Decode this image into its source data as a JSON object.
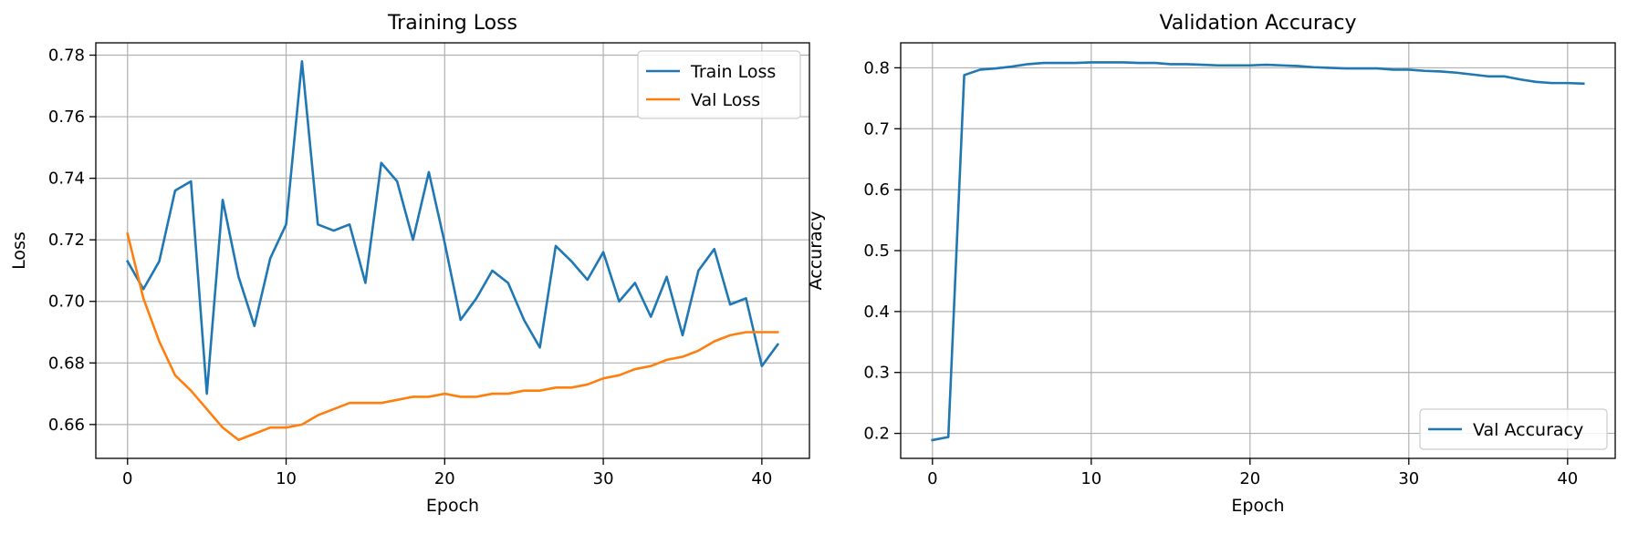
{
  "chart_data": [
    {
      "type": "line",
      "title": "Training Loss",
      "xlabel": "Epoch",
      "ylabel": "Loss",
      "xlim": [
        -2,
        43
      ],
      "ylim": [
        0.649,
        0.784
      ],
      "xticks": [
        0,
        10,
        20,
        30,
        40
      ],
      "yticks": [
        0.66,
        0.68,
        0.7,
        0.72,
        0.74,
        0.76,
        0.78
      ],
      "ytick_labels": [
        "0.66",
        "0.68",
        "0.70",
        "0.72",
        "0.74",
        "0.76",
        "0.78"
      ],
      "grid": true,
      "legend_position": "top-right",
      "x": [
        0,
        1,
        2,
        3,
        4,
        5,
        6,
        7,
        8,
        9,
        10,
        11,
        12,
        13,
        14,
        15,
        16,
        17,
        18,
        19,
        20,
        21,
        22,
        23,
        24,
        25,
        26,
        27,
        28,
        29,
        30,
        31,
        32,
        33,
        34,
        35,
        36,
        37,
        38,
        39,
        40,
        41
      ],
      "series": [
        {
          "name": "Train Loss",
          "color": "#1f77b4",
          "values": [
            0.713,
            0.704,
            0.713,
            0.736,
            0.739,
            0.67,
            0.733,
            0.708,
            0.692,
            0.714,
            0.725,
            0.778,
            0.725,
            0.723,
            0.725,
            0.706,
            0.745,
            0.739,
            0.72,
            0.742,
            0.719,
            0.694,
            0.701,
            0.71,
            0.706,
            0.694,
            0.685,
            0.718,
            0.713,
            0.707,
            0.716,
            0.7,
            0.706,
            0.695,
            0.708,
            0.689,
            0.71,
            0.717,
            0.699,
            0.701,
            0.679,
            0.686
          ]
        },
        {
          "name": "Val Loss",
          "color": "#ff7f0e",
          "values": [
            0.722,
            0.701,
            0.687,
            0.676,
            0.671,
            0.665,
            0.659,
            0.655,
            0.657,
            0.659,
            0.659,
            0.66,
            0.663,
            0.665,
            0.667,
            0.667,
            0.667,
            0.668,
            0.669,
            0.669,
            0.67,
            0.669,
            0.669,
            0.67,
            0.67,
            0.671,
            0.671,
            0.672,
            0.672,
            0.673,
            0.675,
            0.676,
            0.678,
            0.679,
            0.681,
            0.682,
            0.684,
            0.687,
            0.689,
            0.69,
            0.69,
            0.69
          ]
        }
      ]
    },
    {
      "type": "line",
      "title": "Validation Accuracy",
      "xlabel": "Epoch",
      "ylabel": "Accuracy",
      "xlim": [
        -2,
        43
      ],
      "ylim": [
        0.159,
        0.841
      ],
      "xticks": [
        0,
        10,
        20,
        30,
        40
      ],
      "yticks": [
        0.2,
        0.3,
        0.4,
        0.5,
        0.6,
        0.7,
        0.8
      ],
      "ytick_labels": [
        "0.2",
        "0.3",
        "0.4",
        "0.5",
        "0.6",
        "0.7",
        "0.8"
      ],
      "grid": true,
      "legend_position": "bottom-right",
      "x": [
        0,
        1,
        2,
        3,
        4,
        5,
        6,
        7,
        8,
        9,
        10,
        11,
        12,
        13,
        14,
        15,
        16,
        17,
        18,
        19,
        20,
        21,
        22,
        23,
        24,
        25,
        26,
        27,
        28,
        29,
        30,
        31,
        32,
        33,
        34,
        35,
        36,
        37,
        38,
        39,
        40,
        41
      ],
      "series": [
        {
          "name": "Val Accuracy",
          "color": "#1f77b4",
          "values": [
            0.189,
            0.194,
            0.788,
            0.797,
            0.799,
            0.802,
            0.806,
            0.808,
            0.808,
            0.808,
            0.809,
            0.809,
            0.809,
            0.808,
            0.808,
            0.806,
            0.806,
            0.805,
            0.804,
            0.804,
            0.804,
            0.805,
            0.804,
            0.803,
            0.801,
            0.8,
            0.799,
            0.799,
            0.799,
            0.797,
            0.797,
            0.795,
            0.794,
            0.792,
            0.789,
            0.786,
            0.786,
            0.781,
            0.777,
            0.775,
            0.775,
            0.774
          ]
        }
      ]
    }
  ]
}
